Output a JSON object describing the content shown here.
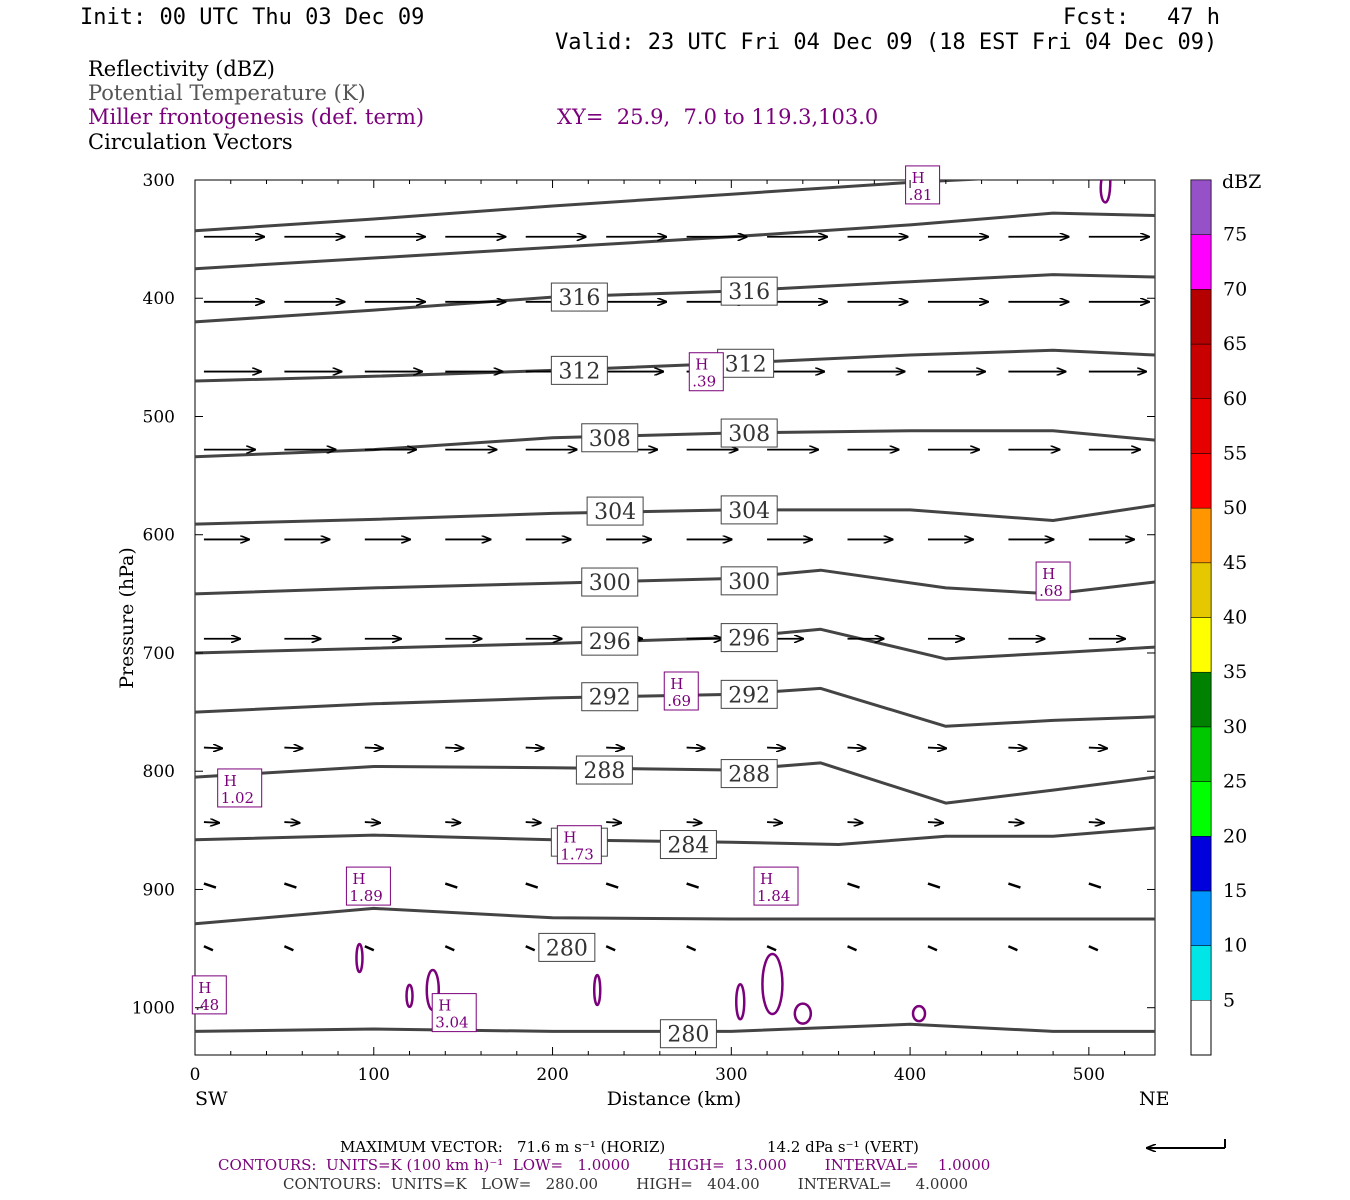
{
  "header": {
    "init": "Init: 00 UTC Thu 03 Dec 09",
    "fcst_label": "Fcst:",
    "fcst_value": "47 h",
    "valid": "Valid: 23 UTC Fri 04 Dec 09 (18 EST Fri 04 Dec 09)"
  },
  "fields": {
    "reflectivity": "Reflectivity (dBZ)",
    "theta": "Potential Temperature (K)",
    "miller": "Miller frontogenesis (def. term)",
    "xy": "XY=  25.9,  7.0 to 119.3,103.0",
    "vectors": "Circulation Vectors"
  },
  "colors": {
    "theta": "#444444",
    "frontogenesis": "#7b007b",
    "vectors": "#000000"
  },
  "chart_data": {
    "type": "cross-section contour",
    "xlabel": "Distance (km)",
    "ylabel": "Pressure (hPa)",
    "xlim": [
      0,
      537
    ],
    "ylim": [
      1040,
      300
    ],
    "x_ticks": [
      0,
      100,
      200,
      300,
      400,
      500
    ],
    "y_ticks": [
      300,
      400,
      500,
      600,
      700,
      800,
      900,
      1000
    ],
    "left_endpoint": "SW",
    "right_endpoint": "NE",
    "theta_labels": [
      {
        "text": "316",
        "x": 215,
        "p": 399
      },
      {
        "text": "316",
        "x": 310,
        "p": 394
      },
      {
        "text": "312",
        "x": 215,
        "p": 461
      },
      {
        "text": "312",
        "x": 308,
        "p": 455
      },
      {
        "text": "308",
        "x": 232,
        "p": 518
      },
      {
        "text": "308",
        "x": 310,
        "p": 514
      },
      {
        "text": "304",
        "x": 235,
        "p": 580
      },
      {
        "text": "304",
        "x": 310,
        "p": 579
      },
      {
        "text": "300",
        "x": 232,
        "p": 640
      },
      {
        "text": "300",
        "x": 310,
        "p": 639
      },
      {
        "text": "296",
        "x": 232,
        "p": 690
      },
      {
        "text": "296",
        "x": 310,
        "p": 687
      },
      {
        "text": "292",
        "x": 232,
        "p": 737
      },
      {
        "text": "292",
        "x": 310,
        "p": 735
      },
      {
        "text": "288",
        "x": 229,
        "p": 799
      },
      {
        "text": "288",
        "x": 310,
        "p": 802
      },
      {
        "text": "284",
        "x": 215,
        "p": 860
      },
      {
        "text": "284",
        "x": 276,
        "p": 862
      },
      {
        "text": "280",
        "x": 208,
        "p": 949
      },
      {
        "text": "280",
        "x": 276,
        "p": 1022
      }
    ],
    "theta_contours": [
      {
        "x": [
          0,
          100,
          200,
          300,
          400,
          480,
          537
        ],
        "p": [
          1020,
          1018,
          1020,
          1020,
          1014,
          1020,
          1020
        ]
      },
      {
        "x": [
          0,
          100,
          200,
          300,
          400,
          480,
          537
        ],
        "p": [
          929,
          916,
          924,
          925,
          925,
          925,
          925
        ]
      },
      {
        "x": [
          0,
          100,
          200,
          300,
          360,
          420,
          480,
          537
        ],
        "p": [
          858,
          854,
          858,
          860,
          862,
          855,
          855,
          848
        ]
      },
      {
        "x": [
          0,
          100,
          200,
          300,
          350,
          420,
          480,
          537
        ],
        "p": [
          805,
          796,
          797,
          799,
          793,
          827,
          816,
          805
        ]
      },
      {
        "x": [
          0,
          100,
          200,
          300,
          350,
          420,
          480,
          537
        ],
        "p": [
          750,
          743,
          738,
          735,
          730,
          762,
          757,
          754
        ]
      },
      {
        "x": [
          0,
          100,
          200,
          300,
          350,
          420,
          480,
          537
        ],
        "p": [
          700,
          696,
          692,
          687,
          680,
          705,
          700,
          695
        ]
      },
      {
        "x": [
          0,
          100,
          200,
          300,
          350,
          420,
          480,
          537
        ],
        "p": [
          650,
          645,
          641,
          637,
          630,
          645,
          650,
          640
        ]
      },
      {
        "x": [
          0,
          100,
          200,
          300,
          400,
          480,
          537
        ],
        "p": [
          591,
          587,
          582,
          579,
          579,
          588,
          575
        ]
      },
      {
        "x": [
          0,
          100,
          200,
          300,
          400,
          480,
          537
        ],
        "p": [
          534,
          528,
          518,
          514,
          512,
          512,
          520
        ]
      },
      {
        "x": [
          0,
          100,
          200,
          300,
          400,
          480,
          537
        ],
        "p": [
          470,
          466,
          461,
          455,
          448,
          444,
          448
        ]
      },
      {
        "x": [
          0,
          100,
          200,
          300,
          400,
          480,
          537
        ],
        "p": [
          420,
          410,
          399,
          394,
          386,
          380,
          382
        ]
      },
      {
        "x": [
          0,
          100,
          200,
          300,
          400,
          480,
          537
        ],
        "p": [
          375,
          366,
          357,
          348,
          338,
          328,
          330
        ]
      },
      {
        "x": [
          0,
          100,
          200,
          300,
          400,
          480,
          537
        ],
        "p": [
          343,
          333,
          322,
          312,
          302,
          296,
          296
        ]
      }
    ],
    "frontogenesis_maxima": [
      {
        "label": "H",
        "value": ".81",
        "x": 407,
        "p": 305
      },
      {
        "label": "H",
        "value": ".39",
        "x": 286,
        "p": 463
      },
      {
        "label": "H",
        "value": ".68",
        "x": 480,
        "p": 640
      },
      {
        "label": "H",
        "value": ".69",
        "x": 272,
        "p": 733
      },
      {
        "label": "H",
        "value": "1.02",
        "x": 25,
        "p": 815
      },
      {
        "label": "H",
        "value": "1.73",
        "x": 215,
        "p": 863
      },
      {
        "label": "H",
        "value": "1.89",
        "x": 97,
        "p": 898
      },
      {
        "label": "H",
        "value": "1.84",
        "x": 325,
        "p": 898
      },
      {
        "label": "H",
        "value": ".48",
        "x": 8,
        "p": 990
      },
      {
        "label": "H",
        "value": "3.04",
        "x": 145,
        "p": 1005
      }
    ],
    "colorbar": {
      "units": "dBZ",
      "labels": [
        "5",
        "10",
        "15",
        "20",
        "25",
        "30",
        "35",
        "40",
        "45",
        "50",
        "55",
        "60",
        "65",
        "70",
        "75"
      ],
      "colors": [
        "#00e6e6",
        "#0096ff",
        "#0000dc",
        "#00ff00",
        "#00c800",
        "#008200",
        "#ffff00",
        "#e6c800",
        "#ff9600",
        "#ff0000",
        "#e60000",
        "#c80000",
        "#b40000",
        "#ff00ff",
        "#9650c8"
      ]
    },
    "vector_rows": [
      {
        "p": 348,
        "u": 1.0,
        "w": 0.0
      },
      {
        "p": 403,
        "u": 1.0,
        "w": 0.0
      },
      {
        "p": 462,
        "u": 0.95,
        "w": 0.0
      },
      {
        "p": 528,
        "u": 0.85,
        "w": 0.0
      },
      {
        "p": 604,
        "u": 0.75,
        "w": 0.0
      },
      {
        "p": 688,
        "u": 0.6,
        "w": 0.0
      },
      {
        "p": 780,
        "u": 0.3,
        "w": 0.1
      },
      {
        "p": 843,
        "u": 0.25,
        "w": 0.1
      },
      {
        "p": 895,
        "u": 0.2,
        "w": 0.1
      },
      {
        "p": 948,
        "u": 0.15,
        "w": 0.1
      }
    ]
  },
  "footer": {
    "max_vector_label": "MAXIMUM VECTOR:",
    "max_vector_horiz": "71.6 m s⁻¹ (HORIZ)",
    "max_vector_vert": "14.2 dPa s⁻¹ (VERT)",
    "contours_purple": "CONTOURS:  UNITS=K (100 km h)⁻¹  LOW=   1.0000        HIGH=  13.000        INTERVAL=    1.0000",
    "contours_gray": "CONTOURS:  UNITS=K   LOW=   280.00        HIGH=   404.00        INTERVAL=     4.0000"
  }
}
